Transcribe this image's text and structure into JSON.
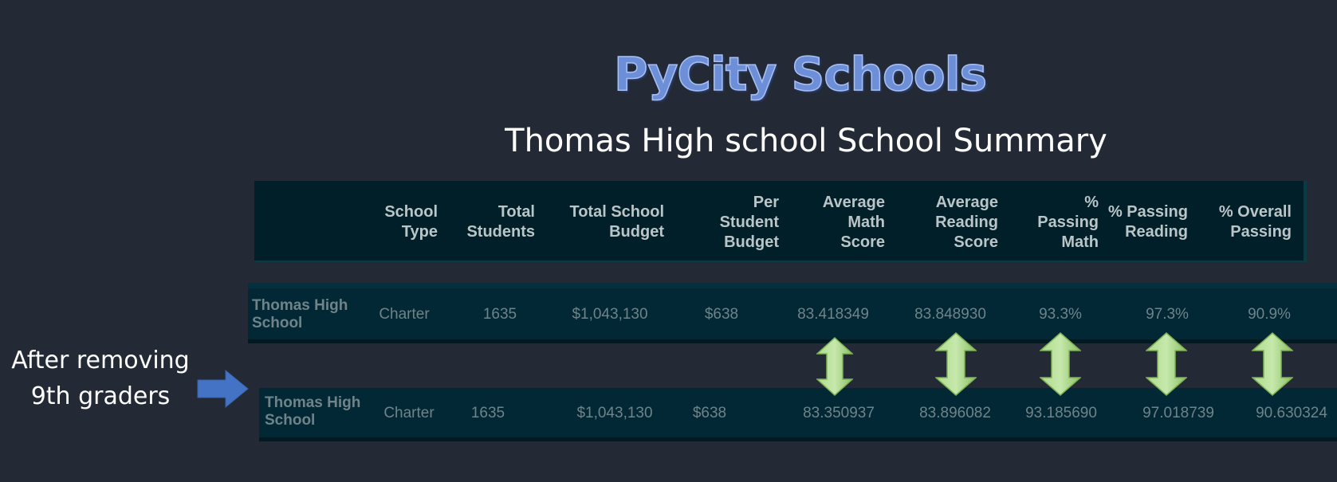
{
  "title": "PyCity Schools",
  "subtitle": "Thomas High school School Summary",
  "side_label": {
    "line1": "After removing",
    "line2": "9th graders"
  },
  "columns": [
    "School\nType",
    "Total\nStudents",
    "Total School\nBudget",
    "Per\nStudent\nBudget",
    "Average\nMath\nScore",
    "Average\nReading\nScore",
    "%\nPassing\nMath",
    "% Passing\nReading",
    "% Overall\nPassing"
  ],
  "row_before": {
    "school_name": "Thomas High School",
    "school_type": "Charter",
    "total_students": "1635",
    "total_budget": "$1,043,130",
    "per_student_budget": "$638",
    "avg_math": "83.418349",
    "avg_reading": "83.848930",
    "pct_math": "93.3%",
    "pct_reading": "97.3%",
    "pct_overall": "90.9%"
  },
  "row_after": {
    "school_name": "Thomas High School",
    "school_type": "Charter",
    "total_students": "1635",
    "total_budget": "$1,043,130",
    "per_student_budget": "$638",
    "avg_math": "83.350937",
    "avg_reading": "83.896082",
    "pct_math": "93.185690",
    "pct_reading": "97.018739",
    "pct_overall": "90.630324"
  },
  "comparison_arrows": [
    "math-score",
    "reading-score",
    "passing-math",
    "passing-reading",
    "overall-passing"
  ],
  "colors": {
    "background": "#232a36",
    "title": "#6d8fd8",
    "table_bg": "#022835",
    "header_bg": "#011f29",
    "header_text": "#bac5c8",
    "cell_text": "#6f8389",
    "arrow_green": "#8fc36a",
    "arrow_blue": "#4472c4"
  }
}
